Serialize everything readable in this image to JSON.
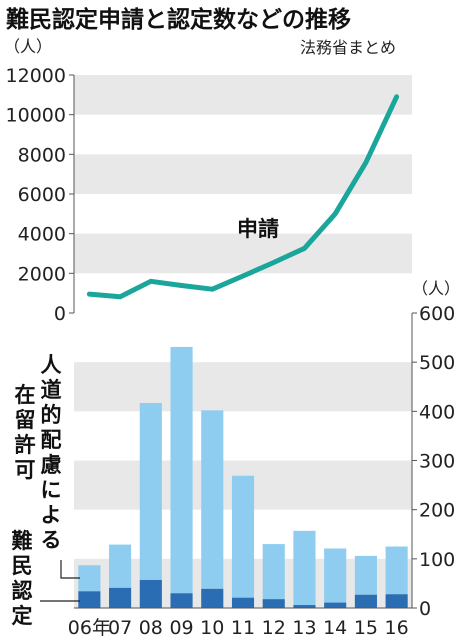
{
  "chart_data": [
    {
      "type": "line",
      "title": "難民認定申請と認定数などの推移",
      "source": "法務省まとめ",
      "y_unit": "（人）",
      "x": [
        "06年",
        "07",
        "08",
        "09",
        "10",
        "11",
        "12",
        "13",
        "14",
        "15",
        "16"
      ],
      "ylim": [
        0,
        12000
      ],
      "y_ticks": [
        0,
        2000,
        4000,
        6000,
        8000,
        10000,
        12000
      ],
      "grid": "horizontal bands",
      "series": [
        {
          "name": "申請",
          "values": [
            954,
            816,
            1599,
            1388,
            1202,
            1867,
            2545,
            3260,
            5000,
            7586,
            10901
          ]
        }
      ],
      "colors": {
        "line": "#1aa69a",
        "band": "#e8e8e8"
      }
    },
    {
      "type": "bar",
      "y_unit": "（人）",
      "x": [
        "06年",
        "07",
        "08",
        "09",
        "10",
        "11",
        "12",
        "13",
        "14",
        "15",
        "16"
      ],
      "ylim": [
        0,
        600
      ],
      "y_ticks": [
        0,
        100,
        200,
        300,
        400,
        500,
        600
      ],
      "stacked": true,
      "series": [
        {
          "name": "難民認定",
          "values": [
            34,
            41,
            57,
            30,
            39,
            21,
            18,
            6,
            11,
            27,
            28
          ]
        },
        {
          "name": "人道的配慮による在留許可",
          "values": [
            53,
            88,
            360,
            501,
            363,
            248,
            112,
            151,
            110,
            79,
            97
          ]
        }
      ],
      "labels": {
        "humanitarian": [
          "人",
          "道",
          "的",
          "配",
          "慮",
          "に",
          "よ",
          "る"
        ],
        "residence": [
          "在",
          "留",
          "許",
          "可"
        ],
        "refugee": [
          "難",
          "民",
          "認",
          "定"
        ]
      },
      "colors": {
        "refugee": "#2a6db3",
        "humanitarian": "#8fcdf0",
        "band": "#e8e8e8"
      }
    }
  ]
}
